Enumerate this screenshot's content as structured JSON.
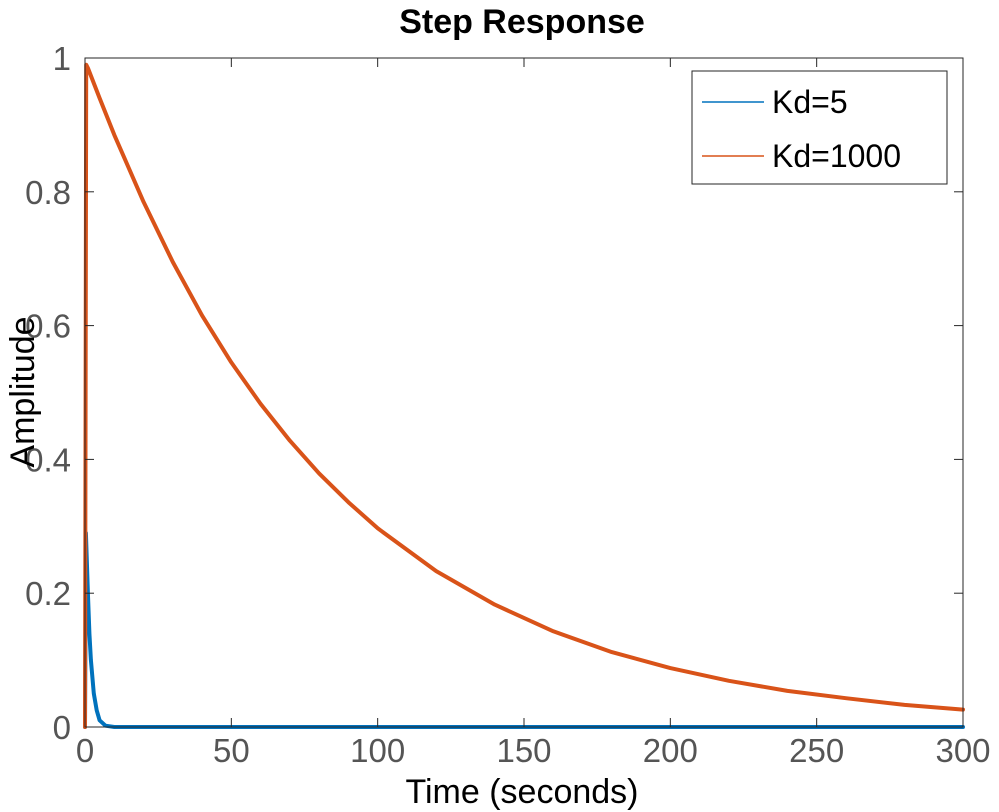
{
  "chart_data": {
    "type": "line",
    "title": "Step Response",
    "xlabel": "Time (seconds)",
    "ylabel": "Amplitude",
    "xlim": [
      0,
      300
    ],
    "ylim": [
      0,
      1
    ],
    "xticks": [
      "0",
      "50",
      "100",
      "150",
      "200",
      "250",
      "300"
    ],
    "yticks": [
      "0",
      "0.2",
      "0.4",
      "0.6",
      "0.8",
      "1"
    ],
    "grid": false,
    "legend_position": "top-right",
    "series": [
      {
        "name": "Kd=5",
        "color": "#0072BD",
        "x": [
          0,
          0.3,
          1,
          1.5,
          2,
          3,
          4,
          5,
          7,
          10,
          50,
          100,
          150,
          200,
          250,
          300
        ],
        "y": [
          0,
          0.29,
          0.2,
          0.14,
          0.1,
          0.05,
          0.025,
          0.01,
          0.002,
          0,
          0,
          0,
          0,
          0,
          0,
          0
        ]
      },
      {
        "name": "Kd=1000",
        "color": "#D95319",
        "x": [
          0,
          0.4,
          1,
          5,
          10,
          20,
          30,
          40,
          50,
          60,
          70,
          80,
          90,
          100,
          120,
          140,
          160,
          180,
          200,
          220,
          240,
          260,
          280,
          300
        ],
        "y": [
          0,
          0.99,
          0.985,
          0.94,
          0.885,
          0.785,
          0.695,
          0.615,
          0.545,
          0.483,
          0.428,
          0.379,
          0.336,
          0.297,
          0.233,
          0.183,
          0.143,
          0.112,
          0.088,
          0.069,
          0.054,
          0.043,
          0.033,
          0.026
        ]
      }
    ]
  }
}
